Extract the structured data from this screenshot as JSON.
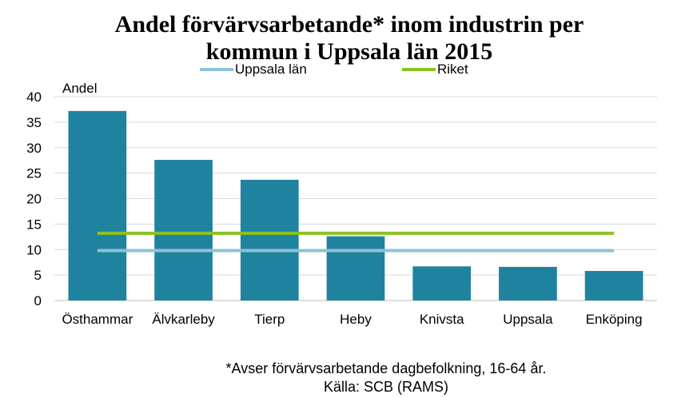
{
  "chart_data": {
    "type": "bar",
    "title_line1": "Andel förvärvsarbetande* inom industrin per",
    "title_line2": "kommun i Uppsala län 2015",
    "ylabel": "Andel",
    "categories": [
      "Östhammar",
      "Älvkarleby",
      "Tierp",
      "Heby",
      "Knivsta",
      "Uppsala",
      "Enköping"
    ],
    "values": [
      37.2,
      27.6,
      23.7,
      12.6,
      6.7,
      6.6,
      5.8
    ],
    "ylim": [
      0,
      40
    ],
    "yticks": [
      "0",
      "5",
      "10",
      "15",
      "20",
      "25",
      "30",
      "35",
      "40"
    ],
    "grid": true,
    "bar_color": "#1f83a0",
    "reference_lines": [
      {
        "name": "Uppsala  län",
        "value": 9.8,
        "color": "#8cc3d6"
      },
      {
        "name": "Riket",
        "value": 13.2,
        "color": "#8dc21f"
      }
    ],
    "legend_position": "top",
    "footnote": "*Avser förvärvsarbetande dagbefolkning,  16-64 år.",
    "source": "Källa: SCB (RAMS)"
  }
}
